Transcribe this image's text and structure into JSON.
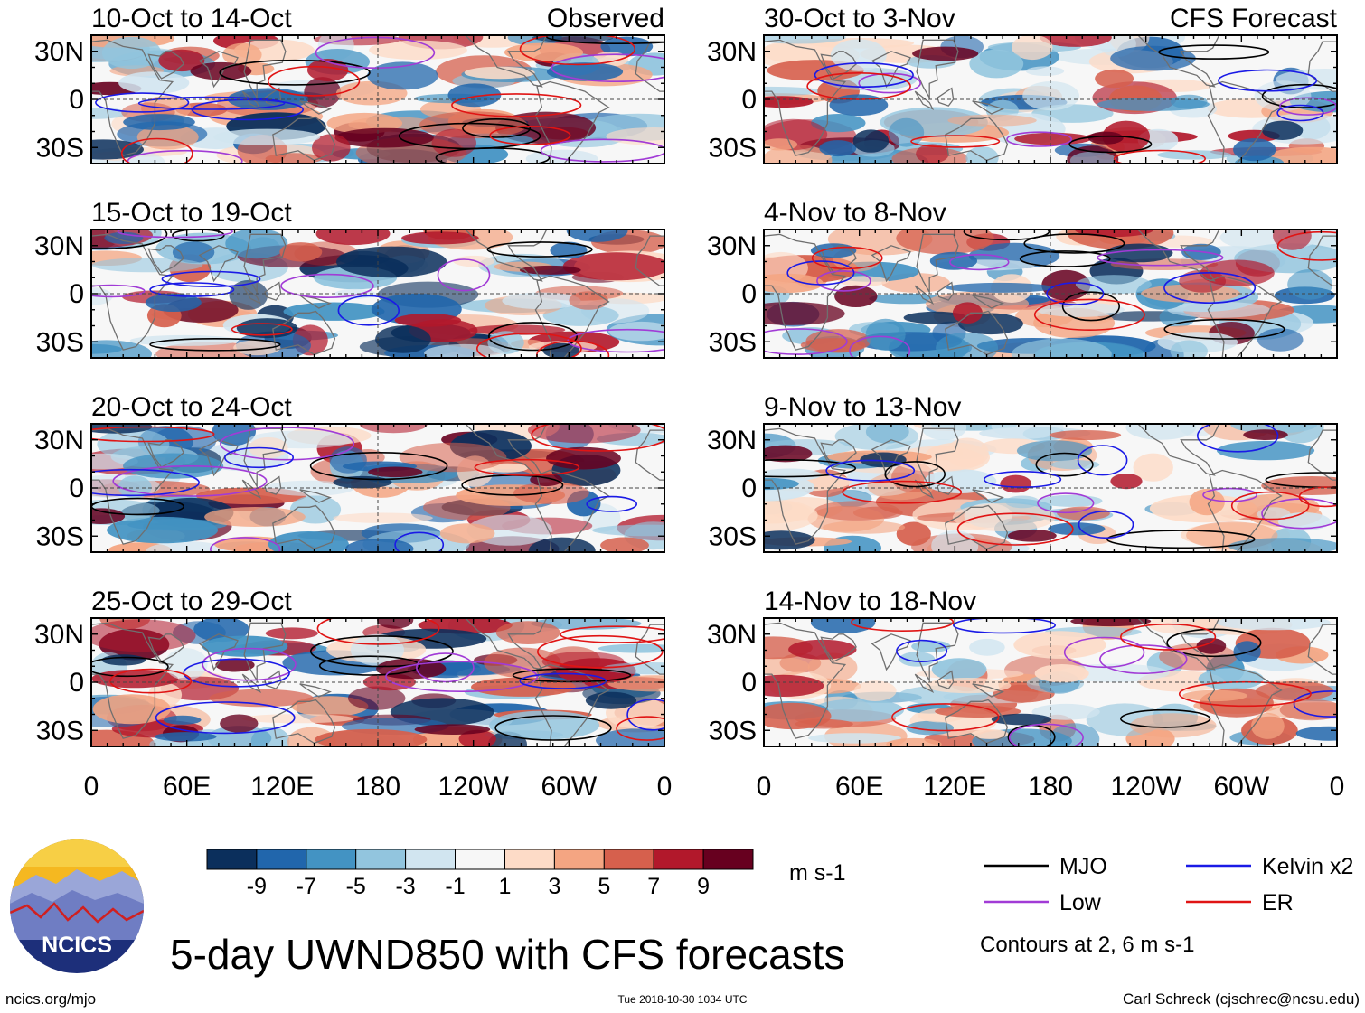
{
  "chart_data": {
    "type": "heatmap",
    "title": "5-day UWND850 with CFS forecasts",
    "variable": "UWND850",
    "units": "m s-1",
    "x_ticks": [
      "0",
      "60E",
      "120E",
      "180",
      "120W",
      "60W",
      "0"
    ],
    "x_tick_values": [
      0,
      60,
      120,
      180,
      240,
      300,
      360
    ],
    "y_ticks": [
      "30N",
      "0",
      "30S"
    ],
    "y_tick_values": [
      30,
      0,
      -30
    ],
    "xlim": [
      0,
      360
    ],
    "ylim": [
      -40,
      40
    ],
    "colorbar": {
      "labels": [
        "-9",
        "-7",
        "-5",
        "-3",
        "-1",
        "1",
        "3",
        "5",
        "7",
        "9"
      ],
      "colors": [
        "#0b2f5c",
        "#2166ac",
        "#4393c3",
        "#92c5de",
        "#d1e5f0",
        "#f7f7f7",
        "#fddbc7",
        "#f4a582",
        "#d6604d",
        "#b2182b",
        "#67001f"
      ]
    },
    "panels": [
      {
        "title": "10-Oct to 14-Oct",
        "label": "Observed",
        "column": "observed"
      },
      {
        "title": "15-Oct to 19-Oct",
        "label": "",
        "column": "observed"
      },
      {
        "title": "20-Oct to 24-Oct",
        "label": "",
        "column": "observed"
      },
      {
        "title": "25-Oct to 29-Oct",
        "label": "",
        "column": "observed"
      },
      {
        "title": "30-Oct to 3-Nov",
        "label": "CFS Forecast",
        "column": "forecast"
      },
      {
        "title": "4-Nov to 8-Nov",
        "label": "",
        "column": "forecast"
      },
      {
        "title": "9-Nov to 13-Nov",
        "label": "",
        "column": "forecast"
      },
      {
        "title": "14-Nov to 18-Nov",
        "label": "",
        "column": "forecast"
      }
    ],
    "legend": {
      "entries": [
        {
          "name": "MJO",
          "color": "#000000"
        },
        {
          "name": "Low",
          "color": "#a13bd6"
        },
        {
          "name": "Kelvin x2",
          "color": "#1a1ae6"
        },
        {
          "name": "ER",
          "color": "#e01414"
        }
      ],
      "note": "Contours at 2, 6 m s-1"
    }
  },
  "footer": {
    "logo_text": "NCICS",
    "website": "ncics.org/mjo",
    "timestamp": "Tue 2018-10-30 1034 UTC",
    "credit": "Carl Schreck (cjschrec@ncsu.edu)"
  }
}
